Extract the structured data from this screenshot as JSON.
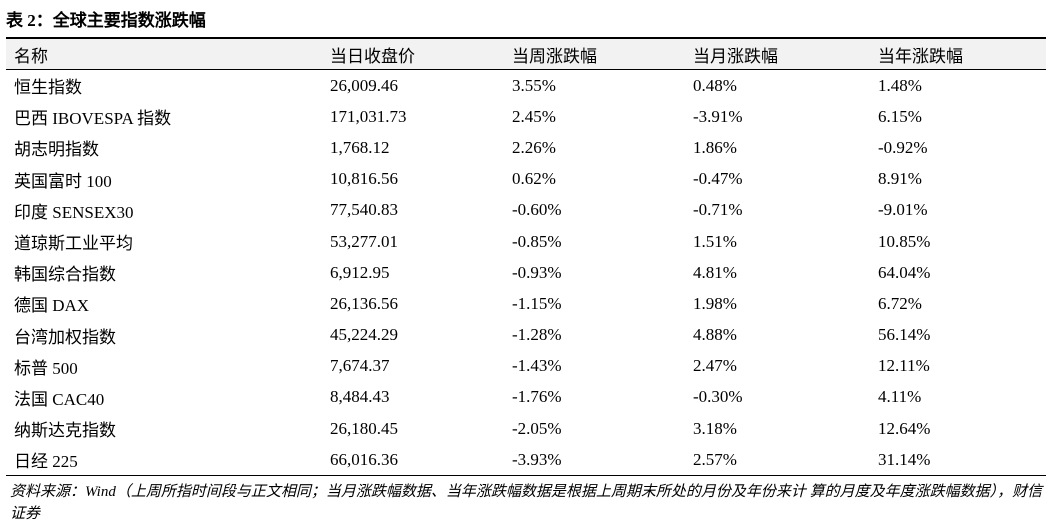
{
  "title": "表 2：全球主要指数涨跌幅",
  "table": {
    "header": [
      "名称",
      "当日收盘价",
      "当周涨跌幅",
      "当月涨跌幅",
      "当年涨跌幅"
    ],
    "rows": [
      [
        "恒生指数",
        "26,009.46",
        "3.55%",
        "0.48%",
        "1.48%"
      ],
      [
        "巴西 IBOVESPA 指数",
        "171,031.73",
        "2.45%",
        "-3.91%",
        "6.15%"
      ],
      [
        "胡志明指数",
        "1,768.12",
        "2.26%",
        "1.86%",
        "-0.92%"
      ],
      [
        "英国富时 100",
        "10,816.56",
        "0.62%",
        "-0.47%",
        "8.91%"
      ],
      [
        "印度 SENSEX30",
        "77,540.83",
        "-0.60%",
        "-0.71%",
        "-9.01%"
      ],
      [
        "道琼斯工业平均",
        "53,277.01",
        "-0.85%",
        "1.51%",
        "10.85%"
      ],
      [
        "韩国综合指数",
        "6,912.95",
        "-0.93%",
        "4.81%",
        "64.04%"
      ],
      [
        "德国 DAX",
        "26,136.56",
        "-1.15%",
        "1.98%",
        "6.72%"
      ],
      [
        "台湾加权指数",
        "45,224.29",
        "-1.28%",
        "4.88%",
        "56.14%"
      ],
      [
        "标普 500",
        "7,674.37",
        "-1.43%",
        "2.47%",
        "12.11%"
      ],
      [
        "法国 CAC40",
        "8,484.43",
        "-1.76%",
        "-0.30%",
        "4.11%"
      ],
      [
        "纳斯达克指数",
        "26,180.45",
        "-2.05%",
        "3.18%",
        "12.64%"
      ],
      [
        "日经 225",
        "66,016.36",
        "-3.93%",
        "2.57%",
        "31.14%"
      ]
    ]
  },
  "source": "资料来源：Wind（上周所指时间段与正文相同；当月涨跌幅数据、当年涨跌幅数据是根据上周期末所处的月份及年份来计 算的月度及年度涨跌幅数据），财信证券"
}
